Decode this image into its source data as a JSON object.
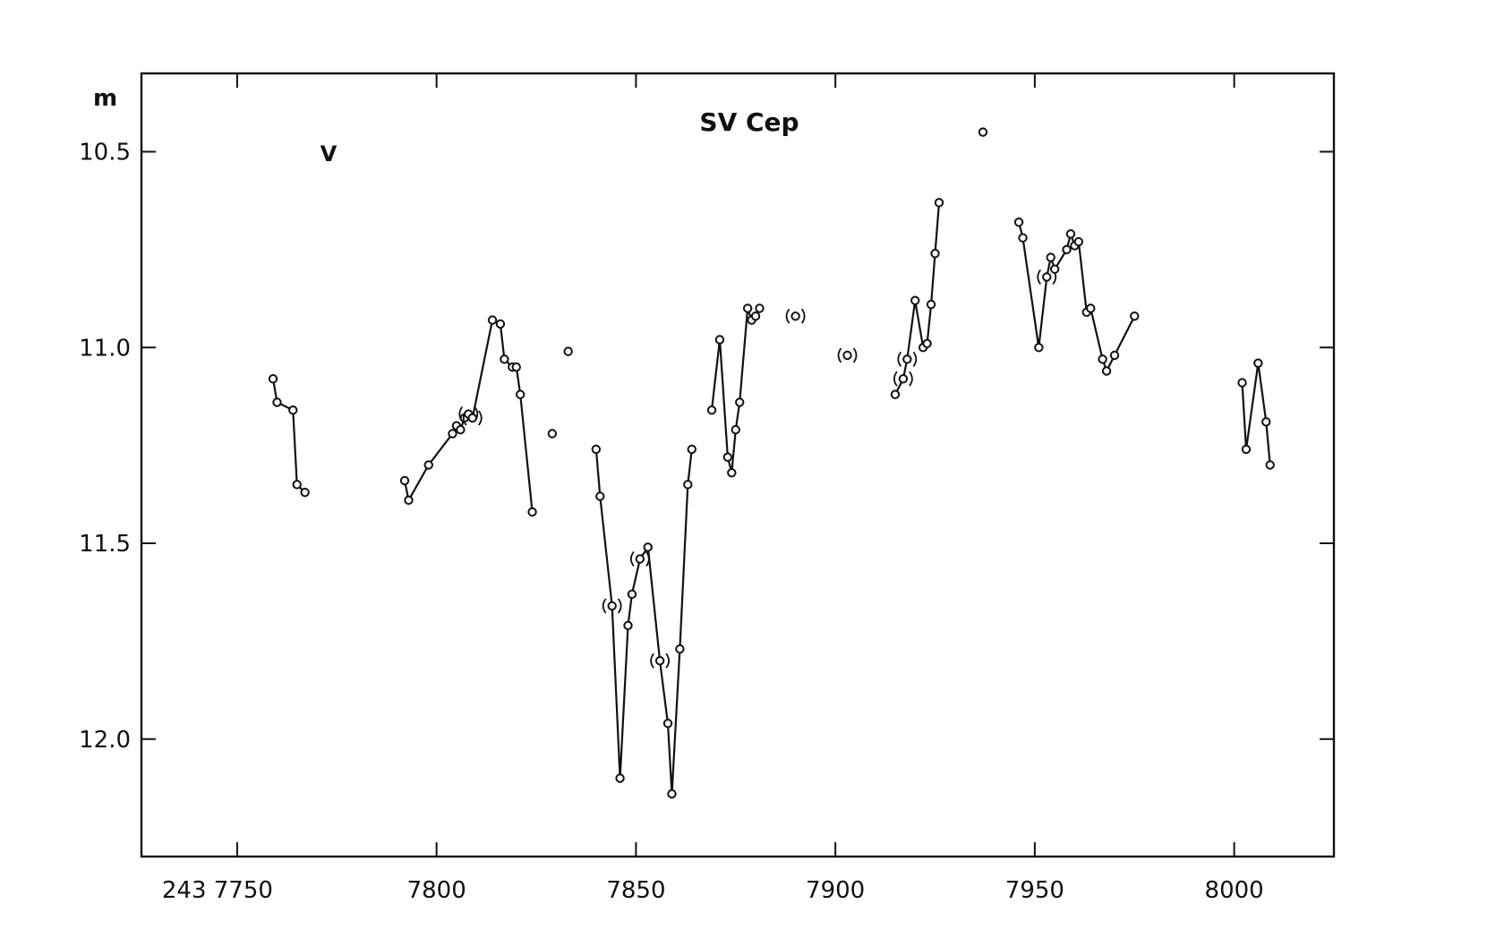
{
  "chart_data": {
    "type": "scatter",
    "title": "SV Cep",
    "filter_label": "V",
    "ylabel": "m",
    "x_tick_labels": [
      "243 7750",
      "7800",
      "7850",
      "7900",
      "7950",
      "8000"
    ],
    "x_ticks": [
      7750,
      7800,
      7850,
      7900,
      7950,
      8000
    ],
    "y_tick_labels": [
      "10.5",
      "11.0",
      "11.5",
      "12.0"
    ],
    "y_ticks": [
      10.5,
      11.0,
      11.5,
      12.0
    ],
    "xlim": [
      7726,
      8025
    ],
    "ylim": [
      10.3,
      12.3
    ],
    "y_inverted": true,
    "grid": false,
    "legend": "none",
    "series": [
      {
        "x": [
          7759,
          7760,
          7764,
          7765,
          7767
        ],
        "y": [
          11.08,
          11.14,
          11.16,
          11.35,
          11.37
        ],
        "uncertain": []
      },
      {
        "x": [
          7792,
          7793,
          7798,
          7804,
          7805,
          7806,
          7807,
          7808,
          7809,
          7814,
          7816,
          7817,
          7819,
          7820,
          7821,
          7824
        ],
        "y": [
          11.34,
          11.39,
          11.3,
          11.22,
          11.2,
          11.21,
          11.18,
          11.17,
          11.18,
          10.93,
          10.94,
          11.03,
          11.05,
          11.05,
          11.12,
          11.42
        ],
        "uncertain": [
          7,
          8
        ]
      },
      {
        "x": [
          7840,
          7841,
          7844,
          7846,
          7848,
          7849,
          7851,
          7853,
          7856,
          7858,
          7859,
          7861,
          7863,
          7864
        ],
        "y": [
          11.26,
          11.38,
          11.66,
          12.1,
          11.71,
          11.63,
          11.54,
          11.51,
          11.8,
          11.96,
          12.14,
          11.77,
          11.35,
          11.26
        ],
        "uncertain": [
          2,
          6,
          8
        ]
      },
      {
        "x": [
          7869,
          7871,
          7873,
          7874,
          7875,
          7876,
          7878,
          7879,
          7880,
          7881
        ],
        "y": [
          11.16,
          10.98,
          11.28,
          11.32,
          11.21,
          11.14,
          10.9,
          10.93,
          10.92,
          10.9
        ],
        "uncertain": []
      },
      {
        "x": [
          7915,
          7917,
          7918,
          7920,
          7922,
          7923,
          7924,
          7925,
          7926
        ],
        "y": [
          11.12,
          11.08,
          11.03,
          10.88,
          11.0,
          10.99,
          10.89,
          10.76,
          10.63
        ],
        "uncertain": [
          1,
          2
        ]
      },
      {
        "x": [
          7946,
          7947,
          7951,
          7953,
          7954,
          7955,
          7958,
          7959,
          7960,
          7961,
          7963,
          7964,
          7967,
          7968,
          7970,
          7975
        ],
        "y": [
          10.68,
          10.72,
          11.0,
          10.82,
          10.77,
          10.8,
          10.75,
          10.71,
          10.74,
          10.73,
          10.91,
          10.9,
          11.03,
          11.06,
          11.02,
          10.92
        ],
        "uncertain": [
          3
        ]
      },
      {
        "x": [
          8002,
          8003,
          8006,
          8008,
          8009
        ],
        "y": [
          11.09,
          11.26,
          11.04,
          11.19,
          11.3
        ],
        "uncertain": []
      }
    ],
    "isolated_points": {
      "x": [
        7829,
        7833,
        7890,
        7903,
        7937
      ],
      "y": [
        11.22,
        11.01,
        10.92,
        11.02,
        10.45
      ],
      "uncertain": [
        2,
        3
      ]
    }
  }
}
